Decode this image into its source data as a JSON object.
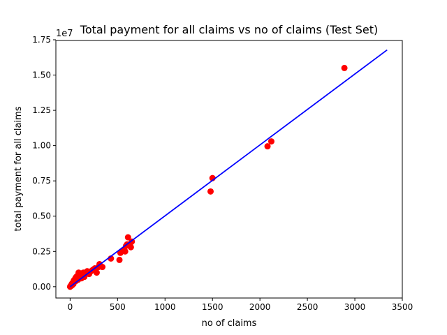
{
  "chart_data": {
    "type": "scatter",
    "title": "Total payment for all claims vs no of claims  (Test Set)",
    "xlabel": "no of claims",
    "ylabel": "total payment for all claims",
    "y_multiplier": "1e7",
    "xlim": [
      -150,
      3500
    ],
    "ylim": [
      -0.08,
      1.745
    ],
    "x_ticks": [
      0,
      500,
      1000,
      1500,
      2000,
      2500,
      3000,
      3500
    ],
    "x_tick_labels": [
      "0",
      "500",
      "1000",
      "1500",
      "2000",
      "2500",
      "3000",
      "3500"
    ],
    "y_ticks": [
      0,
      0.25,
      0.5,
      0.75,
      1.0,
      1.25,
      1.5,
      1.75
    ],
    "y_tick_labels": [
      "0.00",
      "0.25",
      "0.50",
      "0.75",
      "1.00",
      "1.25",
      "1.50",
      "1.75"
    ],
    "grid": false,
    "colors": {
      "points": "#ff0000",
      "line": "#0000ff"
    },
    "scatter_points": [
      [
        0,
        0.0
      ],
      [
        3,
        0.002
      ],
      [
        5,
        0.004
      ],
      [
        8,
        0.006
      ],
      [
        10,
        0.008
      ],
      [
        12,
        0.012
      ],
      [
        15,
        0.015
      ],
      [
        18,
        0.02
      ],
      [
        20,
        0.01
      ],
      [
        25,
        0.025
      ],
      [
        30,
        0.03
      ],
      [
        35,
        0.02
      ],
      [
        40,
        0.045
      ],
      [
        45,
        0.035
      ],
      [
        50,
        0.05
      ],
      [
        55,
        0.06
      ],
      [
        60,
        0.04
      ],
      [
        65,
        0.07
      ],
      [
        70,
        0.06
      ],
      [
        80,
        0.08
      ],
      [
        85,
        0.05
      ],
      [
        90,
        0.1
      ],
      [
        100,
        0.07
      ],
      [
        110,
        0.09
      ],
      [
        120,
        0.06
      ],
      [
        130,
        0.08
      ],
      [
        140,
        0.1
      ],
      [
        150,
        0.07
      ],
      [
        160,
        0.09
      ],
      [
        170,
        0.1
      ],
      [
        180,
        0.11
      ],
      [
        200,
        0.09
      ],
      [
        220,
        0.11
      ],
      [
        240,
        0.12
      ],
      [
        260,
        0.13
      ],
      [
        280,
        0.1
      ],
      [
        300,
        0.14
      ],
      [
        310,
        0.16
      ],
      [
        340,
        0.14
      ],
      [
        430,
        0.2
      ],
      [
        520,
        0.19
      ],
      [
        530,
        0.24
      ],
      [
        560,
        0.26
      ],
      [
        580,
        0.25
      ],
      [
        590,
        0.29
      ],
      [
        600,
        0.3
      ],
      [
        610,
        0.35
      ],
      [
        630,
        0.3
      ],
      [
        640,
        0.28
      ],
      [
        650,
        0.32
      ],
      [
        1480,
        0.675
      ],
      [
        1500,
        0.77
      ],
      [
        2080,
        0.995
      ],
      [
        2120,
        1.03
      ],
      [
        2890,
        1.55
      ]
    ],
    "fit_line": {
      "x": [
        0,
        3340
      ],
      "y": [
        0.0,
        1.678
      ]
    }
  }
}
